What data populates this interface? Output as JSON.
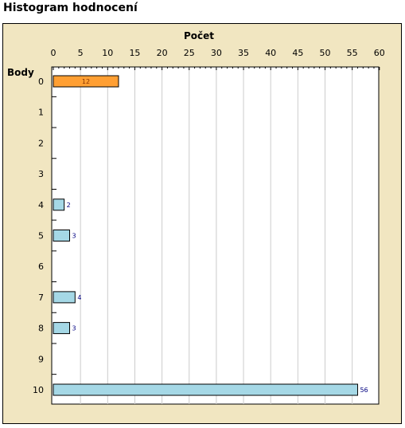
{
  "page": {
    "title": "Histogram hodnocení"
  },
  "chart_data": {
    "type": "bar",
    "orientation": "horizontal",
    "xlabel": "Počet",
    "ylabel": "Body",
    "xlim": [
      0,
      60
    ],
    "x_ticks": [
      0,
      5,
      10,
      15,
      20,
      25,
      30,
      35,
      40,
      45,
      50,
      55,
      60
    ],
    "categories": [
      "0",
      "1",
      "2",
      "3",
      "4",
      "5",
      "6",
      "7",
      "8",
      "9",
      "10"
    ],
    "values": [
      12,
      0,
      0,
      0,
      2,
      3,
      0,
      4,
      3,
      0,
      56
    ],
    "highlighted_category": "0",
    "grid": true,
    "colors": {
      "highlight": "#ff9f33",
      "bar": "#a5d8e6",
      "grid": "#cccccc",
      "frame_bg": "#f1e6c1",
      "plot_bg": "#ffffff",
      "label_default": "#000080",
      "label_highlight": "#883300"
    }
  }
}
